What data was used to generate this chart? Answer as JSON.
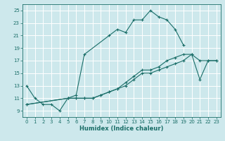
{
  "xlabel": "Humidex (Indice chaleur)",
  "bg_color": "#cde8ec",
  "grid_color": "#ffffff",
  "line_color": "#1a6e68",
  "xlim": [
    -0.5,
    23.5
  ],
  "ylim": [
    8.0,
    26.0
  ],
  "xticks": [
    0,
    1,
    2,
    3,
    4,
    5,
    6,
    7,
    8,
    9,
    10,
    11,
    12,
    13,
    14,
    15,
    16,
    17,
    18,
    19,
    20,
    21,
    22,
    23
  ],
  "yticks": [
    9,
    11,
    13,
    15,
    17,
    19,
    21,
    23,
    25
  ],
  "line1_x": [
    0,
    1,
    2,
    3,
    4,
    5,
    6,
    7,
    10,
    11,
    12,
    13,
    14,
    15,
    16,
    17,
    18,
    19
  ],
  "line1_y": [
    13,
    11,
    10,
    10,
    9,
    11,
    11.5,
    18,
    21,
    22,
    21.5,
    23.5,
    23.5,
    25,
    24,
    23.5,
    22,
    19.5
  ],
  "line2_x": [
    0,
    5,
    6,
    7,
    8,
    9,
    10,
    11,
    12,
    13,
    14,
    15,
    16,
    17,
    18,
    19,
    20,
    21,
    22,
    23
  ],
  "line2_y": [
    10,
    11,
    11,
    11,
    11,
    11.5,
    12,
    12.5,
    13,
    14,
    15,
    15,
    15.5,
    16,
    16.5,
    17,
    18,
    17,
    17,
    17
  ],
  "line3_x": [
    0,
    5,
    6,
    7,
    8,
    9,
    10,
    11,
    12,
    13,
    14,
    15,
    16,
    17,
    18,
    19,
    20,
    21,
    22,
    23
  ],
  "line3_y": [
    10,
    11,
    11,
    11,
    11,
    11.5,
    12,
    12.5,
    13.5,
    14.5,
    15.5,
    15.5,
    16,
    17,
    17.5,
    18,
    18,
    14,
    17,
    17
  ]
}
